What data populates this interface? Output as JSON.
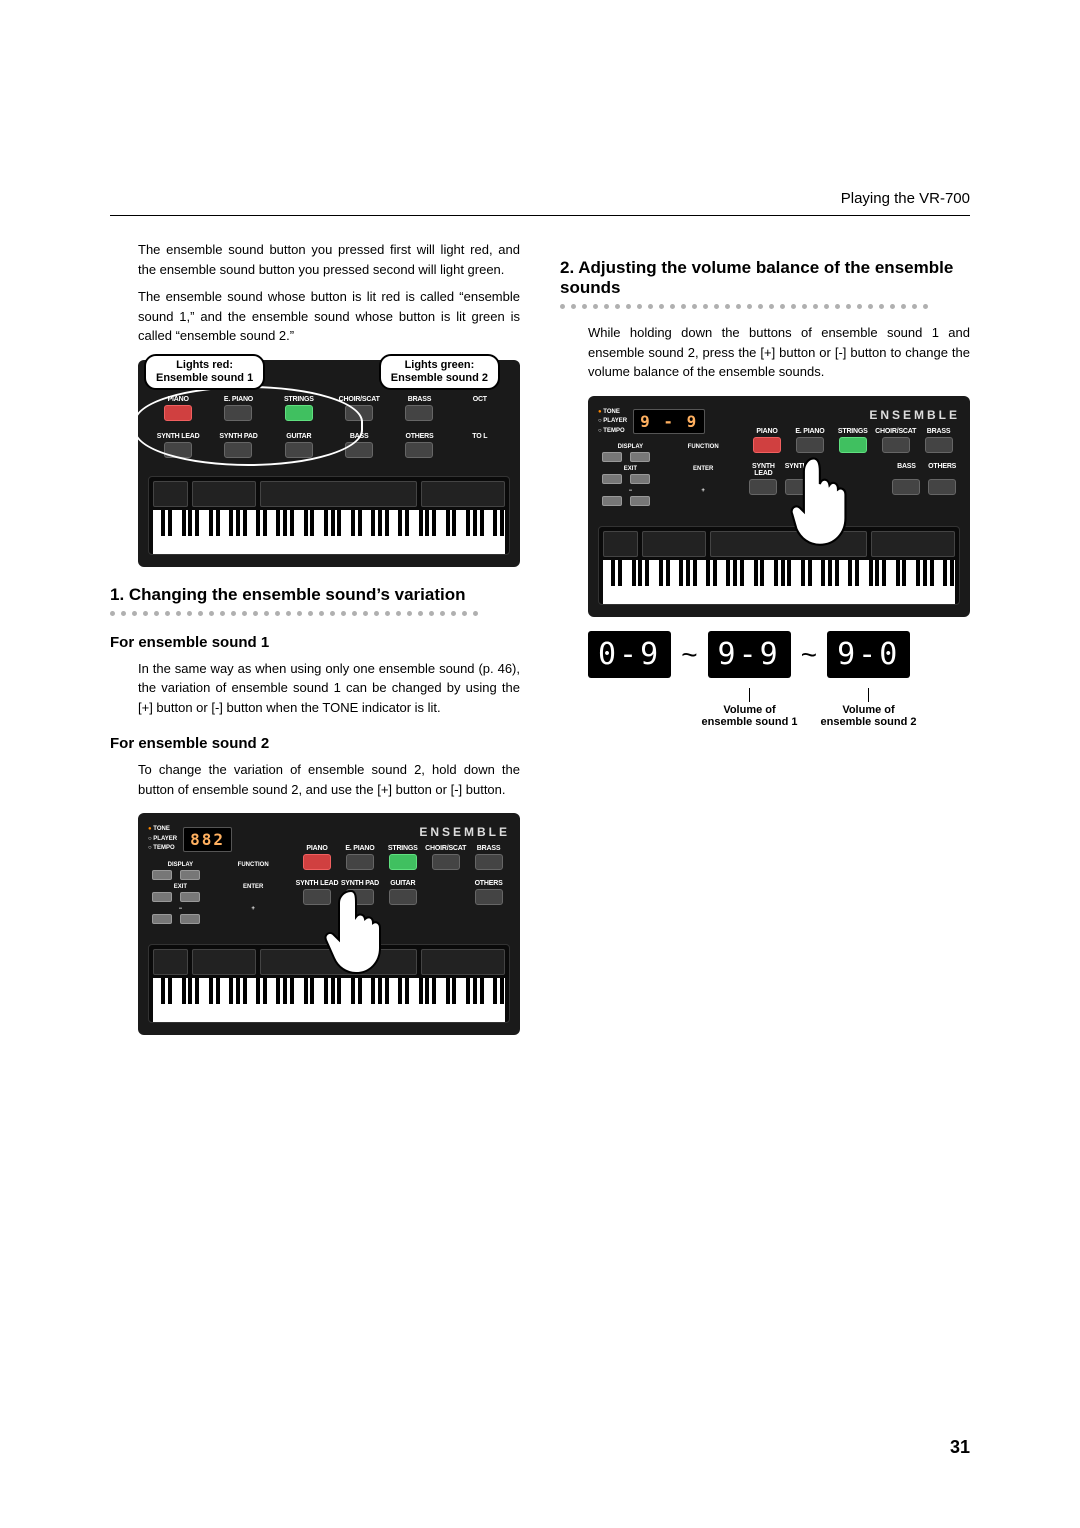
{
  "header": {
    "section": "Playing the VR-700"
  },
  "pageNumber": "31",
  "left": {
    "intro1": "The ensemble sound button you pressed first will light red, and the ensemble sound button you pressed second will light green.",
    "intro2": "The ensemble sound whose button is lit red is called “ensemble sound 1,” and the ensemble sound whose button is lit green is called “ensemble sound 2.”",
    "callout1_line1": "Lights red:",
    "callout1_line2": "Ensemble sound 1",
    "callout2_line1": "Lights green:",
    "callout2_line2": "Ensemble sound 2",
    "panel1": {
      "row1": [
        "PIANO",
        "E. PIANO",
        "STRINGS",
        "CHOIR/SCAT",
        "BRASS",
        "OCT"
      ],
      "row2": [
        "SYNTH LEAD",
        "SYNTH PAD",
        "GUITAR",
        "BASS",
        "OTHERS",
        "TO L"
      ]
    },
    "sec1_title": "1. Changing the ensemble sound’s variation",
    "sub1": "For ensemble sound 1",
    "sub1_body": "In the same way as when using only one ensemble sound (p. 46), the variation of ensemble sound 1 can be changed by using the [+] button or [-] button when the TONE indicator is lit.",
    "sub2": "For ensemble sound 2",
    "sub2_body": "To change the variation of ensemble sound 2, hold down the button of ensemble sound 2, and use the [+] button or [-] button.",
    "panel2": {
      "lcd": "8 8 2",
      "side": [
        "TONE",
        "PLAYER",
        "TEMPO"
      ],
      "left_btns": [
        "DISPLAY",
        "FUNCTION",
        "EXIT",
        "ENTER",
        "−",
        "+"
      ],
      "ensemble": "ENSEMBLE",
      "row1": [
        "PIANO",
        "E. PIANO",
        "STRINGS",
        "CHOIR/SCAT",
        "BRASS"
      ],
      "row2": [
        "SYNTH LEAD",
        "SYNTH PAD",
        "GUITAR",
        "",
        "OTHERS"
      ]
    }
  },
  "right": {
    "sec2_title": "2. Adjusting the volume balance of the ensemble sounds",
    "sec2_body": "While holding down the buttons of ensemble sound 1 and ensemble sound 2, press the [+] button or [-] button to change the volume balance of the ensemble sounds.",
    "panel3": {
      "lcd": "9 - 9",
      "side": [
        "TONE",
        "PLAYER",
        "TEMPO"
      ],
      "left_btns": [
        "DISPLAY",
        "FUNCTION",
        "EXIT",
        "ENTER",
        "−",
        "+"
      ],
      "ensemble": "ENSEMBLE",
      "row1": [
        "PIANO",
        "E. PIANO",
        "STRINGS",
        "CHOIR/SCAT",
        "BRASS"
      ],
      "row2": [
        "SYNTH LEAD",
        "SYNTH P",
        "",
        "R",
        "BASS",
        "OTHERS"
      ]
    },
    "digits": [
      "0-9",
      "9-9",
      "9-0"
    ],
    "vol1_a": "Volume of",
    "vol1_b": "ensemble sound 1",
    "vol2_a": "Volume of",
    "vol2_b": "ensemble sound 2"
  },
  "colors": {
    "page_bg": "#ffffff",
    "text": "#000000",
    "panel_bg": "#1a1a1a",
    "btn_bg": "#444444",
    "btn_red": "#d04040",
    "btn_green": "#40c060",
    "lcd_text": "#ffb060",
    "dot": "#b0b0b0"
  }
}
